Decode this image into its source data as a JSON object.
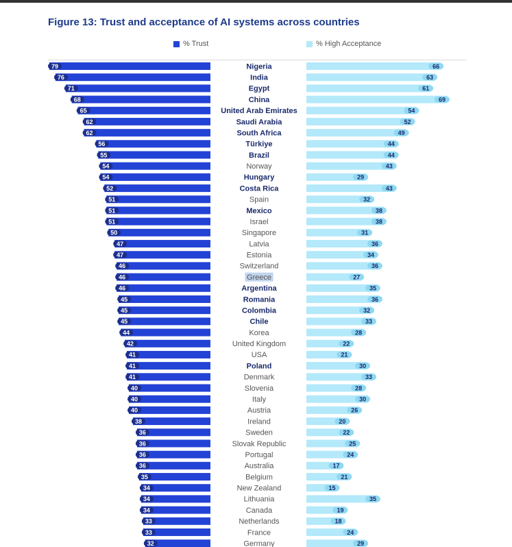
{
  "title": "Figure 13: Trust and acceptance of AI systems across countries",
  "legend": [
    {
      "label": "% Trust",
      "color": "#2343d6"
    },
    {
      "label": "% High Acceptance",
      "color": "#b3e9fa"
    }
  ],
  "colors": {
    "trust": "#2343d6",
    "trust_label_bg": "#1d2f8c",
    "acceptance": "#b3e9fa",
    "acceptance_label_bg": "#8fd8f2",
    "country_emphasis": "#1a2a6c",
    "country_regular": "#555555",
    "highlight": "#c2d4ee"
  },
  "chart_data": {
    "type": "bar",
    "orientation": "horizontal",
    "title": "Figure 13: Trust and acceptance of AI systems across countries",
    "categories": [
      "Nigeria",
      "India",
      "Egypt",
      "China",
      "United Arab Emirates",
      "Saudi Arabia",
      "South Africa",
      "Türkiye",
      "Brazil",
      "Norway",
      "Hungary",
      "Costa Rica",
      "Spain",
      "Mexico",
      "Israel",
      "Singapore",
      "Latvia",
      "Estonia",
      "Switzerland",
      "Greece",
      "Argentina",
      "Romania",
      "Colombia",
      "Chile",
      "Korea",
      "United Kingdom",
      "USA",
      "Poland",
      "Denmark",
      "Slovenia",
      "Italy",
      "Austria",
      "Ireland",
      "Sweden",
      "Slovak Republic",
      "Portugal",
      "Australia",
      "Belgium",
      "New Zealand",
      "Lithuania",
      "Canada",
      "Netherlands",
      "France",
      "Germany"
    ],
    "emphasized": [
      "Nigeria",
      "India",
      "Egypt",
      "China",
      "United Arab Emirates",
      "Saudi Arabia",
      "South Africa",
      "Türkiye",
      "Brazil",
      "Hungary",
      "Costa Rica",
      "Mexico",
      "Argentina",
      "Romania",
      "Colombia",
      "Chile",
      "Poland"
    ],
    "highlighted": [
      "Greece"
    ],
    "series": [
      {
        "name": "% Trust",
        "values": [
          79,
          76,
          71,
          68,
          65,
          62,
          62,
          56,
          55,
          54,
          54,
          52,
          51,
          51,
          51,
          50,
          47,
          47,
          46,
          46,
          46,
          45,
          45,
          45,
          44,
          42,
          41,
          41,
          41,
          40,
          40,
          40,
          38,
          36,
          36,
          36,
          36,
          35,
          34,
          34,
          34,
          33,
          33,
          32
        ]
      },
      {
        "name": "% High Acceptance",
        "values": [
          66,
          63,
          61,
          69,
          54,
          52,
          49,
          44,
          44,
          43,
          29,
          43,
          32,
          38,
          38,
          31,
          36,
          34,
          36,
          27,
          35,
          36,
          32,
          33,
          28,
          22,
          21,
          30,
          33,
          28,
          30,
          26,
          20,
          22,
          25,
          24,
          17,
          21,
          15,
          35,
          19,
          18,
          24,
          29
        ]
      }
    ],
    "xlabel": "",
    "ylabel": "",
    "xlim": [
      0,
      100
    ],
    "legend_position": "top"
  }
}
